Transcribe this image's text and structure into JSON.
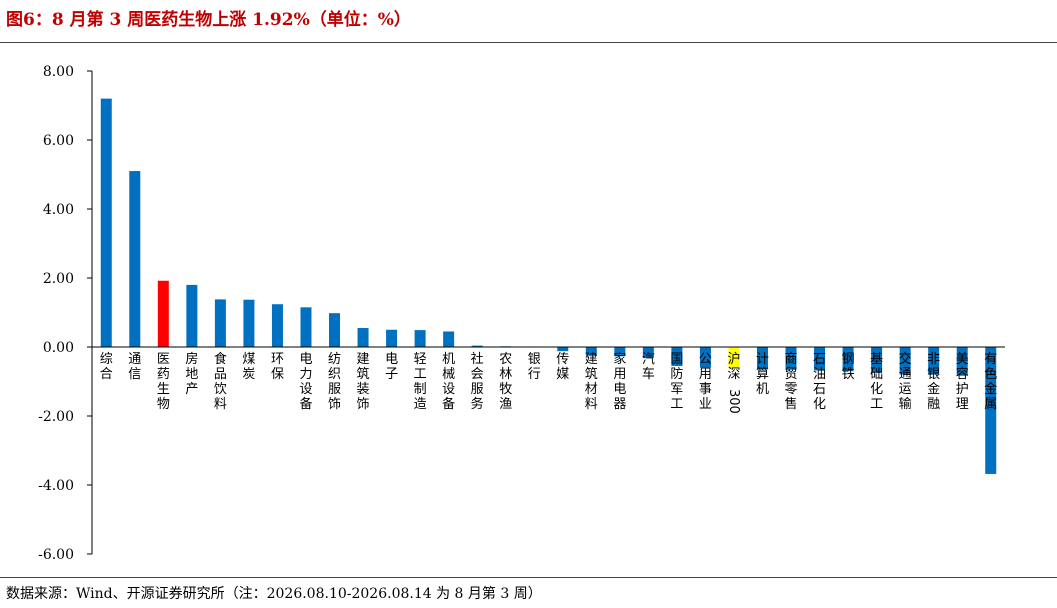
{
  "header": {
    "title": "图6：8 月第 3 周医药生物上涨 1.92%（单位：%）"
  },
  "footer": {
    "source": "数据来源：Wind、开源证券研究所（注：2026.08.10-2026.08.14 为 8 月第 3 周）"
  },
  "colors": {
    "title": "#c00000",
    "default_bar": "#0070c0",
    "highlight_bar": "#ff0000",
    "benchmark_bar": "#ffff00"
  },
  "chart_data": {
    "type": "bar",
    "title": "",
    "xlabel": "",
    "ylabel": "",
    "ylim": [
      -6,
      8
    ],
    "yticks": [
      8,
      6,
      4,
      2,
      0,
      -2,
      -4,
      -6
    ],
    "ytick_labels": [
      "8.00",
      "6.00",
      "4.00",
      "2.00",
      "0.00",
      "-2.00",
      "-4.00",
      "-6.00"
    ],
    "grid": false,
    "legend": "none",
    "categories": [
      "综合",
      "通信",
      "医药生物",
      "房地产",
      "食品饮料",
      "煤炭",
      "环保",
      "电力设备",
      "纺织服饰",
      "建筑装饰",
      "电子",
      "轻工制造",
      "机械设备",
      "社会服务",
      "农林牧渔",
      "银行",
      "传媒",
      "建筑材料",
      "家用电器",
      "汽车",
      "国防军工",
      "公用事业",
      "沪深300",
      "计算机",
      "商贸零售",
      "石油石化",
      "钢铁",
      "基础化工",
      "交通运输",
      "非银金融",
      "美容护理",
      "有色金属"
    ],
    "values": [
      7.2,
      5.1,
      1.92,
      1.8,
      1.38,
      1.37,
      1.24,
      1.15,
      0.98,
      0.55,
      0.5,
      0.49,
      0.45,
      0.04,
      0.02,
      0.0,
      -0.12,
      -0.25,
      -0.27,
      -0.32,
      -0.55,
      -0.6,
      -0.62,
      -0.65,
      -0.66,
      -0.68,
      -0.7,
      -0.75,
      -0.8,
      -0.8,
      -0.82,
      -3.68
    ],
    "highlight": {
      "医药生物": "red",
      "沪深300": "yellow"
    }
  }
}
